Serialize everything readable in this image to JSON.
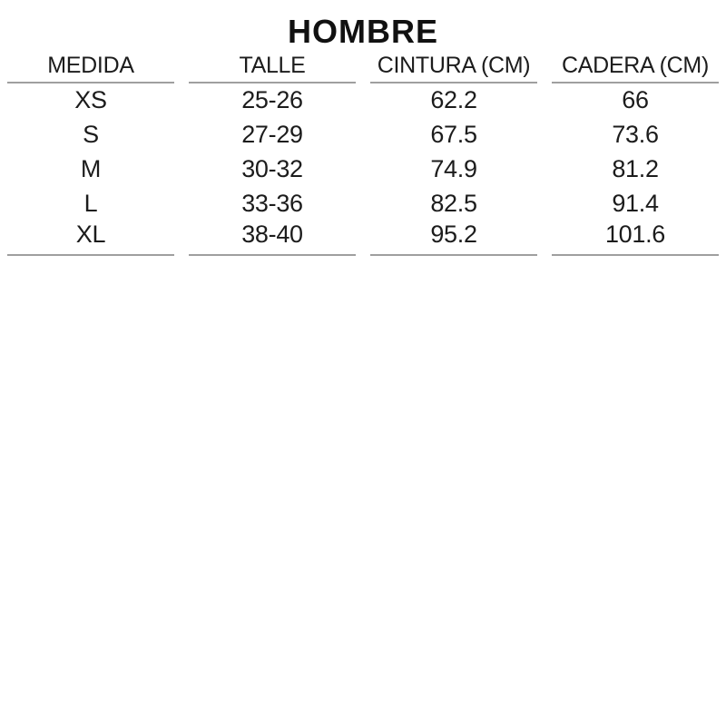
{
  "title": "HOMBRE",
  "table": {
    "headers": [
      "MEDIDA",
      "TALLE",
      "CINTURA (CM)",
      "CADERA (CM)"
    ],
    "rows": [
      [
        "XS",
        "25-26",
        "62.2",
        "66"
      ],
      [
        "S",
        "27-29",
        "67.5",
        "73.6"
      ],
      [
        "M",
        "30-32",
        "74.9",
        "81.2"
      ],
      [
        "L",
        "33-36",
        "82.5",
        "91.4"
      ],
      [
        "XL",
        "38-40",
        "95.2",
        "101.6"
      ]
    ]
  },
  "colors": {
    "text": "#1c1c1c",
    "line": "#9f9f9f",
    "background": "#ffffff"
  }
}
